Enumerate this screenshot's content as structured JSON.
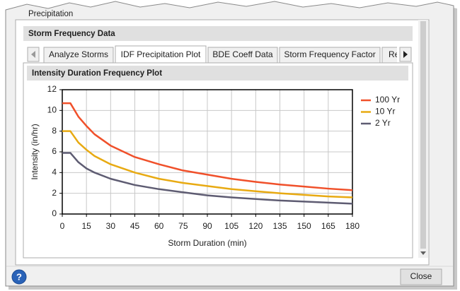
{
  "window": {
    "title": "Precipitation"
  },
  "group": {
    "title": "Storm Frequency Data"
  },
  "tabs": [
    {
      "label": "Analyze Storms",
      "active": false
    },
    {
      "label": "IDF Precipitation Plot",
      "active": true
    },
    {
      "label": "BDE Coeff Data",
      "active": false
    },
    {
      "label": "Storm Frequency Factor",
      "active": false
    },
    {
      "label": "Re",
      "active": false
    }
  ],
  "panel": {
    "title": "Intensity Duration Frequency Plot"
  },
  "chart_data": {
    "type": "line",
    "x_label": "Storm Duration (min)",
    "y_label": "Intensity (in/hr)",
    "x": [
      0,
      5,
      10,
      15,
      20,
      30,
      45,
      60,
      75,
      90,
      105,
      120,
      135,
      150,
      165,
      180
    ],
    "series": [
      {
        "name": "100 Yr",
        "color": "#f0502a",
        "values": [
          10.7,
          10.7,
          9.4,
          8.5,
          7.7,
          6.6,
          5.5,
          4.8,
          4.2,
          3.8,
          3.4,
          3.1,
          2.85,
          2.65,
          2.45,
          2.3
        ]
      },
      {
        "name": "10 Yr",
        "color": "#e8aa12",
        "values": [
          8.0,
          8.0,
          6.9,
          6.2,
          5.6,
          4.8,
          4.0,
          3.4,
          3.0,
          2.7,
          2.4,
          2.2,
          2.0,
          1.85,
          1.7,
          1.6
        ]
      },
      {
        "name": "2 Yr",
        "color": "#5e5c72",
        "values": [
          5.9,
          5.9,
          5.0,
          4.4,
          4.0,
          3.4,
          2.8,
          2.4,
          2.1,
          1.8,
          1.6,
          1.45,
          1.3,
          1.2,
          1.1,
          1.0
        ]
      }
    ],
    "xlim": [
      0,
      180
    ],
    "xticks": [
      0,
      15,
      30,
      45,
      60,
      75,
      90,
      105,
      120,
      135,
      150,
      165,
      180
    ],
    "ylim": [
      0,
      12
    ],
    "yticks": [
      0,
      2,
      4,
      6,
      8,
      10,
      12
    ],
    "grid": true,
    "legend": "right"
  },
  "buttons": {
    "help": "?",
    "close": "Close"
  }
}
